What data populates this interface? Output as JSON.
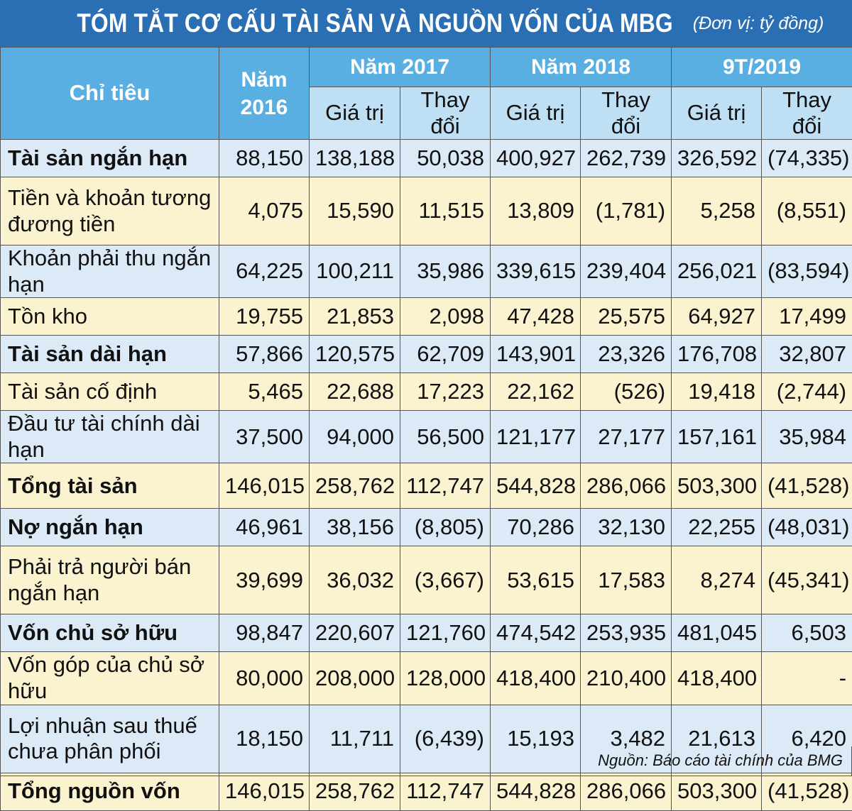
{
  "title": "TÓM TẮT CƠ CẤU TÀI SẢN VÀ NGUỒN VỐN CỦA MBG",
  "unit": "(Đơn vị: tỷ đồng)",
  "header": {
    "col_label": "Chỉ tiêu",
    "year2016": "Năm 2016",
    "year2017": "Năm 2017",
    "year2018": "Năm 2018",
    "period2019": "9T/2019",
    "value": "Giá trị",
    "change": "Thay đổi"
  },
  "rows": [
    {
      "label": "Tài sản ngắn hạn",
      "v2016": "88,150",
      "v2017": "138,188",
      "c2017": "50,038",
      "v2018": "400,927",
      "c2018": "262,739",
      "v2019": "326,592",
      "c2019": "(74,335)"
    },
    {
      "label": "Tiền và khoản tương đương tiền",
      "v2016": "4,075",
      "v2017": "15,590",
      "c2017": "11,515",
      "v2018": "13,809",
      "c2018": "(1,781)",
      "v2019": "5,258",
      "c2019": "(8,551)"
    },
    {
      "label": "Khoản phải thu ngắn hạn",
      "v2016": "64,225",
      "v2017": "100,211",
      "c2017": "35,986",
      "v2018": "339,615",
      "c2018": "239,404",
      "v2019": "256,021",
      "c2019": "(83,594)"
    },
    {
      "label": "Tồn kho",
      "v2016": "19,755",
      "v2017": "21,853",
      "c2017": "2,098",
      "v2018": "47,428",
      "c2018": "25,575",
      "v2019": "64,927",
      "c2019": "17,499"
    },
    {
      "label": "Tài sản dài hạn",
      "v2016": "57,866",
      "v2017": "120,575",
      "c2017": "62,709",
      "v2018": "143,901",
      "c2018": "23,326",
      "v2019": "176,708",
      "c2019": "32,807"
    },
    {
      "label": "Tài sản cố định",
      "v2016": "5,465",
      "v2017": "22,688",
      "c2017": "17,223",
      "v2018": "22,162",
      "c2018": "(526)",
      "v2019": "19,418",
      "c2019": "(2,744)"
    },
    {
      "label": "Đầu tư tài chính dài hạn",
      "v2016": "37,500",
      "v2017": "94,000",
      "c2017": "56,500",
      "v2018": "121,177",
      "c2018": "27,177",
      "v2019": "157,161",
      "c2019": "35,984"
    },
    {
      "label": "Tổng tài sản",
      "v2016": "146,015",
      "v2017": "258,762",
      "c2017": "112,747",
      "v2018": "544,828",
      "c2018": "286,066",
      "v2019": "503,300",
      "c2019": "(41,528)"
    },
    {
      "label": "Nợ ngắn hạn",
      "v2016": "46,961",
      "v2017": "38,156",
      "c2017": "(8,805)",
      "v2018": "70,286",
      "c2018": "32,130",
      "v2019": "22,255",
      "c2019": "(48,031)"
    },
    {
      "label": "Phải trả người bán ngắn hạn",
      "v2016": "39,699",
      "v2017": "36,032",
      "c2017": "(3,667)",
      "v2018": "53,615",
      "c2018": "17,583",
      "v2019": "8,274",
      "c2019": "(45,341)"
    },
    {
      "label": "Vốn chủ sở hữu",
      "v2016": "98,847",
      "v2017": "220,607",
      "c2017": "121,760",
      "v2018": "474,542",
      "c2018": "253,935",
      "v2019": "481,045",
      "c2019": "6,503"
    },
    {
      "label": "Vốn góp của chủ sở hữu",
      "v2016": "80,000",
      "v2017": "208,000",
      "c2017": "128,000",
      "v2018": "418,400",
      "c2018": "210,400",
      "v2019": "418,400",
      "c2019": "-"
    },
    {
      "label": "Lợi nhuận sau thuế chưa phân phối",
      "v2016": "18,150",
      "v2017": "11,711",
      "c2017": "(6,439)",
      "v2018": "15,193",
      "c2018": "3,482",
      "v2019": "21,613",
      "c2019": "6,420"
    },
    {
      "label": "Tổng nguồn vốn",
      "v2016": "146,015",
      "v2017": "258,762",
      "c2017": "112,747",
      "v2018": "544,828",
      "c2018": "286,066",
      "v2019": "503,300",
      "c2019": "(41,528)"
    }
  ],
  "source": "Nguồn: Báo cáo tài chính của BMG",
  "colors": {
    "title_bg": "#2a6fb3",
    "header_bg": "#5aafe2",
    "subheader_bg": "#bfe0f4",
    "row_blue": "#dce9f6",
    "row_cream": "#fbf3d0"
  }
}
